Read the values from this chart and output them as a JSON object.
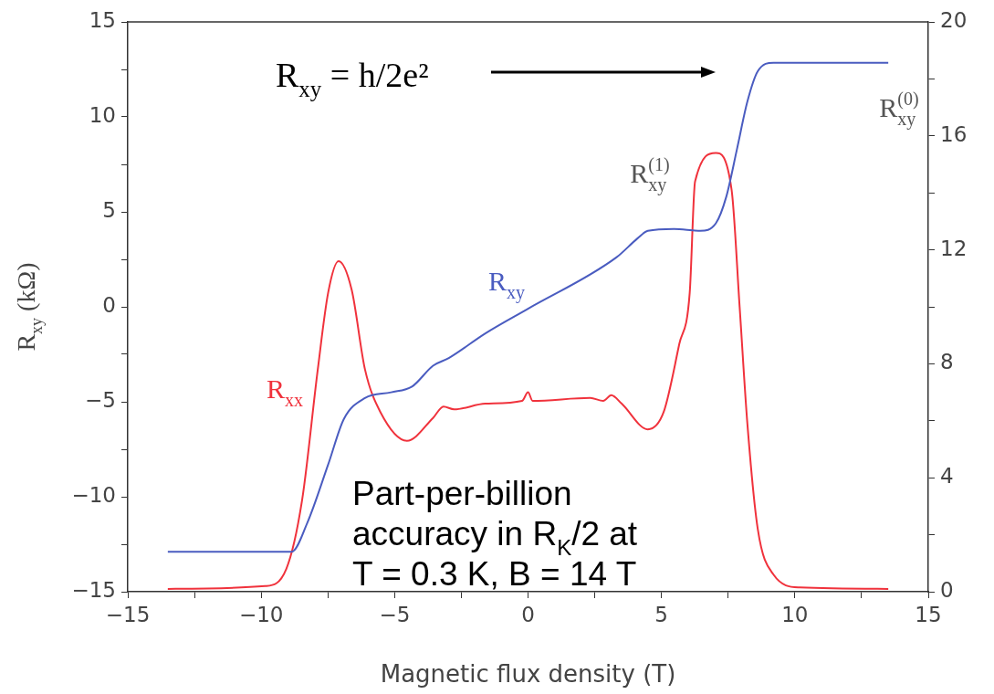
{
  "chart_data": {
    "type": "line",
    "xlabel": "Magnetic flux density (T)",
    "ylabel": "R$_{xy}$ (kΩ)",
    "xlim": [
      -15,
      15
    ],
    "xticks": [
      -15,
      {
        "value": -12.5,
        "label": null
      },
      -10,
      {
        "value": -7.5,
        "label": null
      },
      -5,
      {
        "value": -2.5,
        "label": null
      },
      0,
      {
        "value": 2.5,
        "label": null
      },
      5,
      {
        "value": 7.5,
        "label": null
      },
      10,
      {
        "value": 12.5,
        "label": null
      },
      15
    ],
    "ylim": [
      -15,
      15
    ],
    "yticks": [
      -15,
      {
        "value": -12.5,
        "label": null
      },
      -10,
      {
        "value": -7.5,
        "label": null
      },
      -5,
      {
        "value": -2.5,
        "label": null
      },
      0,
      {
        "value": 2.5,
        "label": null
      },
      5,
      {
        "value": 7.5,
        "label": null
      },
      10,
      {
        "value": 12.5,
        "label": null
      },
      15
    ],
    "y2lim": [
      0,
      20
    ],
    "y2ticks": [
      0,
      {
        "value": 2,
        "label": null
      },
      4,
      {
        "value": 6,
        "label": null
      },
      8,
      {
        "value": 10,
        "label": null
      },
      12,
      {
        "value": 14,
        "label": null
      },
      16,
      {
        "value": 18,
        "label": null
      },
      20
    ],
    "grid": false,
    "legend": false,
    "marker": "none",
    "line_style": "solid",
    "series": [
      {
        "name": "R$_{xy}$",
        "color": "#4a5cc0",
        "axis": "y",
        "x": [
          -13.5,
          -8.86,
          -8.28,
          -7.49,
          -6.9,
          -6.11,
          -5.13,
          -4.35,
          -3.56,
          -2.97,
          -1.6,
          0,
          3.31,
          4.1,
          4.49,
          5.47,
          6.45,
          7.04,
          7.43,
          7.83,
          8.22,
          8.61,
          9.2,
          13.5
        ],
        "values": [
          -12.9,
          -12.9,
          -11.4,
          -8.3,
          -5.9,
          -4.8,
          -4.5,
          -4.2,
          -3.1,
          -2.7,
          -1.4,
          -0.1,
          2.6,
          3.6,
          4.0,
          4.1,
          4.0,
          4.4,
          5.8,
          8.3,
          10.8,
          12.4,
          12.85,
          12.85
        ]
      },
      {
        "name": "R$_{xx}$",
        "color": "#f0323c",
        "axis": "y2",
        "x": [
          -13.5,
          -9.85,
          -9.06,
          -8.47,
          -7.88,
          -7.49,
          -7.1,
          -6.61,
          -6.11,
          -5.53,
          -4.54,
          -3.56,
          -3.17,
          -2.77,
          -1.6,
          -0.22,
          0,
          0.17,
          2.33,
          2.82,
          3.12,
          3.51,
          4.49,
          5.08,
          5.67,
          6.06,
          6.26,
          7.04,
          7.63,
          7.93,
          8.22,
          8.61,
          9.2,
          10.18,
          13.5
        ],
        "values": [
          0.1,
          0.2,
          0.8,
          3.2,
          7.8,
          10.5,
          11.6,
          10.6,
          7.8,
          6.3,
          5.3,
          6.1,
          6.5,
          6.4,
          6.6,
          6.7,
          7.0,
          6.7,
          6.8,
          6.7,
          6.9,
          6.6,
          5.7,
          6.3,
          8.7,
          10.5,
          14.4,
          15.4,
          14.1,
          10.0,
          5.9,
          2.2,
          0.6,
          0.15,
          0.1
        ]
      }
    ],
    "annotations": [
      "R$_{xy}$ = h/2e²",
      "Part-per-billion\naccuracy in R$_{K}$/2 at\nT = 0.3 K, B = 14 T",
      "R$_{xy}$$^{(1)}$",
      "R$_{xy}$$^{(0)}$"
    ]
  }
}
